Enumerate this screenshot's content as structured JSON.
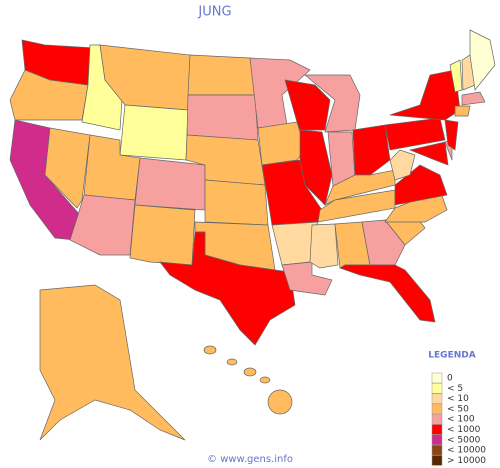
{
  "title": "JUNG",
  "legend": {
    "title": "LEGENDA",
    "items": [
      {
        "label": "0",
        "color": "#ffffd4"
      },
      {
        "label": "< 5",
        "color": "#ffff99"
      },
      {
        "label": "< 10",
        "color": "#ffd9a0"
      },
      {
        "label": "< 50",
        "color": "#ffbb5e"
      },
      {
        "label": "< 100",
        "color": "#f7a0a0"
      },
      {
        "label": "< 1000",
        "color": "#ff0000"
      },
      {
        "label": "< 5000",
        "color": "#d02c8c"
      },
      {
        "label": "< 10000",
        "color": "#8b4513"
      },
      {
        "label": "> 10000",
        "color": "#5a2800"
      }
    ]
  },
  "footer": "© www.gens.info"
}
